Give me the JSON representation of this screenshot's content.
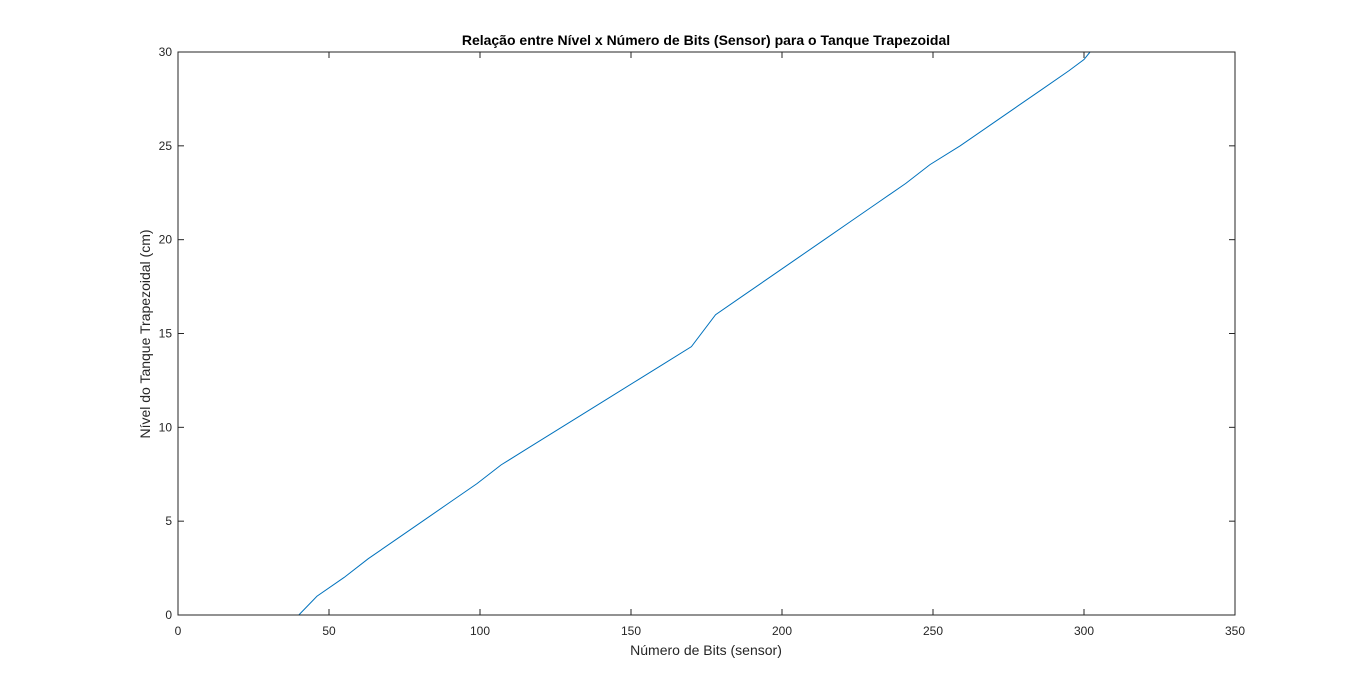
{
  "chart_data": {
    "type": "line",
    "title": "Relação entre Nível x Número de Bits (Sensor) para o Tanque Trapezoidal",
    "xlabel": "Número de Bits (sensor)",
    "ylabel": "Nível do Tanque Trapezoidal (cm)",
    "xlim": [
      0,
      350
    ],
    "ylim": [
      0,
      30
    ],
    "xticks": [
      "0",
      "50",
      "100",
      "150",
      "200",
      "250",
      "300",
      "350"
    ],
    "yticks": [
      "0",
      "5",
      "10",
      "15",
      "20",
      "25",
      "30"
    ],
    "grid": false,
    "line_color": "#0072BD",
    "series": [
      {
        "x": [
          40,
          46,
          55,
          63,
          72,
          81,
          90,
          99,
          107,
          116,
          125,
          134,
          143,
          152,
          161,
          170,
          178,
          187,
          196,
          205,
          214,
          223,
          232,
          241,
          249,
          259,
          268,
          277,
          286,
          295,
          300,
          302
        ],
        "y": [
          0,
          1,
          2,
          3,
          4,
          5,
          6,
          7,
          8,
          8.9,
          9.8,
          10.7,
          11.6,
          12.5,
          13.4,
          14.3,
          16,
          17,
          18,
          19,
          20,
          21,
          22,
          23,
          24,
          25,
          26,
          27,
          28,
          29,
          29.6,
          30
        ]
      }
    ]
  }
}
